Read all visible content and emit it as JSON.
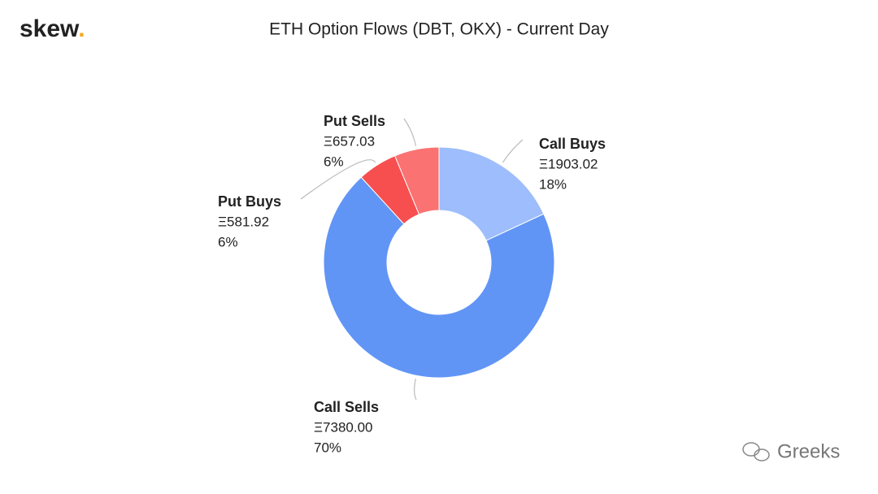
{
  "brand": {
    "name": "skew",
    "dot": "."
  },
  "watermark": "Greeks",
  "chart_data": {
    "type": "pie",
    "title": "ETH Option Flows (DBT, OKX) - Current Day",
    "categories": [
      "Call Buys",
      "Call Sells",
      "Put Buys",
      "Put Sells"
    ],
    "values": [
      1903.02,
      7380.0,
      581.92,
      657.03
    ],
    "value_labels": [
      "Ξ1903.02",
      "Ξ7380.00",
      "Ξ581.92",
      "Ξ657.03"
    ],
    "percent_labels": [
      "18%",
      "70%",
      "6%",
      "6%"
    ],
    "colors": [
      "#9dbdfc",
      "#6195f5",
      "#f74f4f",
      "#fb7272"
    ]
  }
}
